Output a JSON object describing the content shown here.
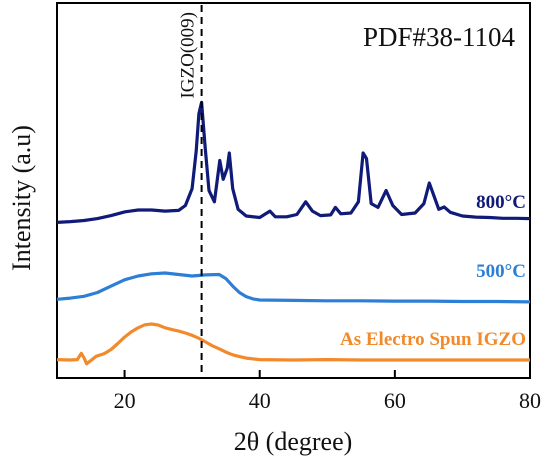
{
  "chart_data": {
    "type": "line",
    "xlabel": "2θ (degree)",
    "ylabel": "Intensity (a.u)",
    "xlim": [
      10,
      80
    ],
    "ylim": [
      0,
      100
    ],
    "x_ticks": [
      20,
      40,
      60,
      80
    ],
    "reference_label": "PDF#38-1104",
    "annotation": {
      "label": "IGZO(009)",
      "x": 31.4
    },
    "series": [
      {
        "name": "800°C",
        "color": "#101a78",
        "points": [
          [
            10,
            41.5
          ],
          [
            12,
            41.7
          ],
          [
            14,
            42.0
          ],
          [
            16,
            42.5
          ],
          [
            18,
            43.3
          ],
          [
            20,
            44.3
          ],
          [
            22,
            44.8
          ],
          [
            24,
            44.8
          ],
          [
            26,
            44.5
          ],
          [
            28,
            44.7
          ],
          [
            29,
            46.0
          ],
          [
            30,
            50.5
          ],
          [
            30.6,
            60.5
          ],
          [
            31.0,
            70.5
          ],
          [
            31.4,
            73.5
          ],
          [
            31.9,
            62.0
          ],
          [
            32.5,
            50.0
          ],
          [
            33.3,
            47.0
          ],
          [
            34.1,
            58.0
          ],
          [
            34.6,
            53.0
          ],
          [
            35.2,
            56.0
          ],
          [
            35.5,
            60.0
          ],
          [
            36.0,
            50.5
          ],
          [
            36.8,
            45.0
          ],
          [
            38,
            43.2
          ],
          [
            40,
            42.8
          ],
          [
            41.5,
            44.5
          ],
          [
            42.3,
            43.0
          ],
          [
            44,
            43.0
          ],
          [
            45.5,
            43.6
          ],
          [
            46.8,
            47.0
          ],
          [
            47.8,
            44.5
          ],
          [
            49,
            43.3
          ],
          [
            50.5,
            43.5
          ],
          [
            51.2,
            45.5
          ],
          [
            52,
            43.8
          ],
          [
            53.5,
            44.0
          ],
          [
            54.6,
            47.0
          ],
          [
            55.3,
            60.0
          ],
          [
            55.8,
            58.5
          ],
          [
            56.5,
            46.5
          ],
          [
            57.5,
            45.5
          ],
          [
            58.7,
            50.0
          ],
          [
            59.7,
            46.0
          ],
          [
            61,
            43.6
          ],
          [
            63,
            44.0
          ],
          [
            64.3,
            46.5
          ],
          [
            65.1,
            52.0
          ],
          [
            65.8,
            48.5
          ],
          [
            66.5,
            45.0
          ],
          [
            67.3,
            45.6
          ],
          [
            68.2,
            44.2
          ],
          [
            70,
            43.2
          ],
          [
            72,
            42.9
          ],
          [
            74,
            42.8
          ],
          [
            76,
            42.6
          ],
          [
            78,
            42.6
          ],
          [
            80,
            42.5
          ]
        ]
      },
      {
        "name": "500°C",
        "color": "#2d7fd6",
        "points": [
          [
            10,
            21.0
          ],
          [
            12,
            21.3
          ],
          [
            14,
            21.8
          ],
          [
            16,
            22.8
          ],
          [
            18,
            24.5
          ],
          [
            20,
            26.2
          ],
          [
            22,
            27.2
          ],
          [
            24,
            27.8
          ],
          [
            26,
            28.0
          ],
          [
            28,
            27.6
          ],
          [
            30,
            27.2
          ],
          [
            32,
            27.5
          ],
          [
            34,
            27.6
          ],
          [
            35,
            26.5
          ],
          [
            36,
            24.5
          ],
          [
            37,
            22.8
          ],
          [
            38,
            21.7
          ],
          [
            39,
            21.1
          ],
          [
            40,
            20.8
          ],
          [
            45,
            20.7
          ],
          [
            50,
            20.6
          ],
          [
            55,
            20.6
          ],
          [
            60,
            20.5
          ],
          [
            65,
            20.5
          ],
          [
            70,
            20.4
          ],
          [
            75,
            20.4
          ],
          [
            80,
            20.3
          ]
        ]
      },
      {
        "name": "As Electro Spun IGZO",
        "color": "#f28a2c",
        "points": [
          [
            10,
            4.9
          ],
          [
            12,
            4.8
          ],
          [
            13.0,
            4.9
          ],
          [
            13.6,
            6.6
          ],
          [
            14.0,
            5.4
          ],
          [
            14.4,
            3.8
          ],
          [
            14.9,
            4.5
          ],
          [
            15.8,
            5.8
          ],
          [
            17,
            6.5
          ],
          [
            18,
            7.6
          ],
          [
            19,
            9.2
          ],
          [
            20,
            10.9
          ],
          [
            21,
            12.3
          ],
          [
            22,
            13.4
          ],
          [
            23,
            14.2
          ],
          [
            24,
            14.4
          ],
          [
            25,
            14.1
          ],
          [
            26,
            13.4
          ],
          [
            27,
            12.9
          ],
          [
            28,
            12.5
          ],
          [
            29,
            12.0
          ],
          [
            30,
            11.4
          ],
          [
            31,
            10.6
          ],
          [
            32,
            9.6
          ],
          [
            33,
            8.6
          ],
          [
            34,
            7.8
          ],
          [
            35,
            6.9
          ],
          [
            36,
            6.2
          ],
          [
            37,
            5.7
          ],
          [
            38,
            5.3
          ],
          [
            40,
            4.9
          ],
          [
            45,
            4.8
          ],
          [
            50,
            4.9
          ],
          [
            55,
            4.8
          ],
          [
            60,
            4.8
          ],
          [
            65,
            4.8
          ],
          [
            70,
            4.8
          ],
          [
            75,
            4.8
          ],
          [
            80,
            4.8
          ]
        ]
      }
    ]
  }
}
